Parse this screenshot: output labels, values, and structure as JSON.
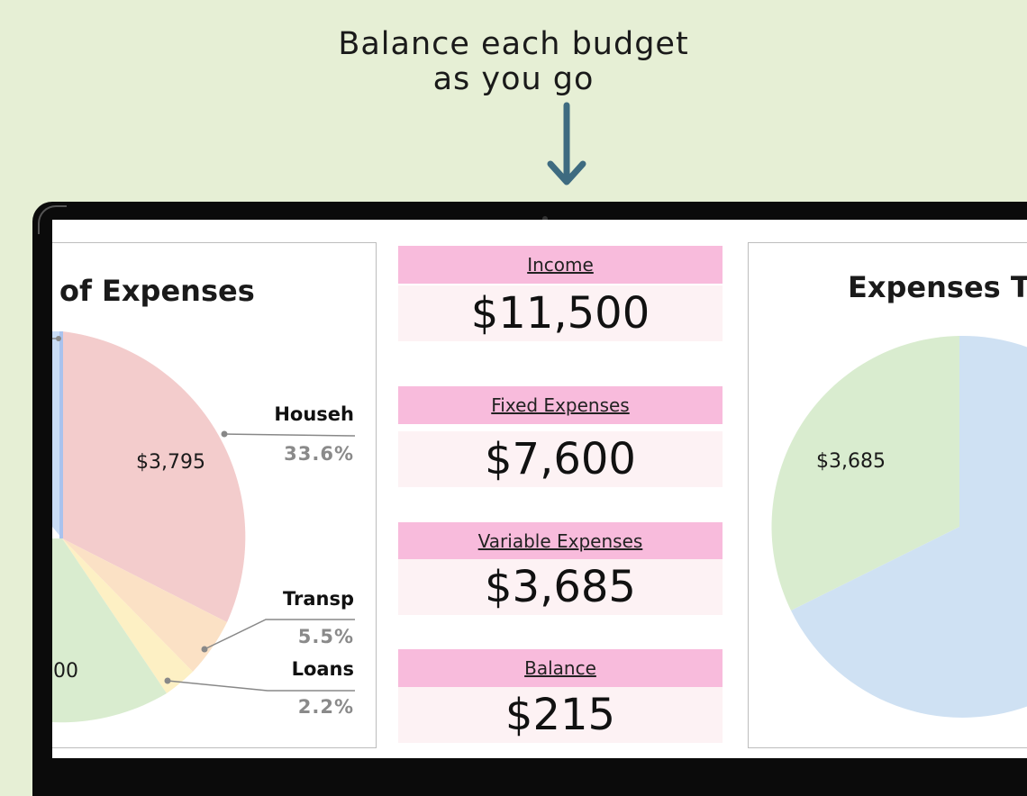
{
  "headline": {
    "line1": "Balance each budget",
    "line2": "as you go"
  },
  "colors": {
    "background": "#e6efd5",
    "arrow": "#3e6b80",
    "label_fill": "#f8bbdc",
    "value_fill": "#fdf2f4",
    "pie_household": "#f3cccc",
    "pie_transport": "#fbe1c5",
    "pie_loans": "#fdf0c4",
    "pie_green": "#d9eccf",
    "pie_blue": "#cfe1f3"
  },
  "left_chart": {
    "title": "of Expenses",
    "slice_label": "$3,795",
    "partial_label": "00",
    "legend": [
      {
        "name": "Househ",
        "pct": "33.6%"
      },
      {
        "name": "Transp",
        "pct": "5.5%"
      },
      {
        "name": "Loans",
        "pct": "2.2%"
      }
    ]
  },
  "metrics": [
    {
      "label": "Income",
      "value": "$11,500"
    },
    {
      "label": "Fixed Expenses",
      "value": "$7,600"
    },
    {
      "label": "Variable Expenses",
      "value": "$3,685"
    },
    {
      "label": "Balance",
      "value": "$215"
    }
  ],
  "right_chart": {
    "title": "Expenses Ty",
    "slice_label": "$3,685"
  },
  "chart_data": [
    {
      "type": "pie",
      "title": "of Expenses",
      "categories": [
        "Househ",
        "Transp",
        "Loans"
      ],
      "values": [
        33.6,
        5.5,
        2.2
      ],
      "value_labels": [
        "$3,795",
        "",
        ""
      ],
      "legend": "right"
    },
    {
      "type": "pie",
      "title": "Expenses Ty",
      "categories": [
        "",
        ""
      ],
      "values": [
        32,
        68
      ],
      "value_labels": [
        "$3,685",
        ""
      ]
    }
  ]
}
